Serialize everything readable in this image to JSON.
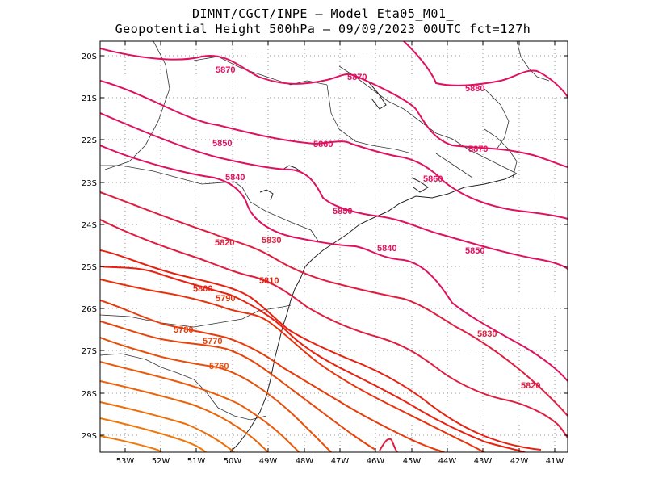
{
  "title": {
    "line1": "DIMNT/CGCT/INPE –  Model Eta05_M01_",
    "line2": "Geopotential Height 500hPa –  09/09/2023 00UTC fct=127h"
  },
  "map": {
    "lon_range": [
      -53.6,
      -40.6
    ],
    "lat_range": [
      -29.4,
      -19.7
    ],
    "lat_ticks": [
      "20S",
      "21S",
      "22S",
      "23S",
      "24S",
      "25S",
      "26S",
      "27S",
      "28S",
      "29S"
    ],
    "lon_ticks": [
      "53W",
      "52W",
      "51W",
      "50W",
      "49W",
      "48W",
      "47W",
      "46W",
      "45W",
      "44W",
      "43W",
      "42W",
      "41W"
    ],
    "grid": "dotted-gray",
    "units": "gpm"
  },
  "colors": {
    "c5870": "#e0115f",
    "c5860": "#e0115f",
    "c5850": "#e0115f",
    "c5840": "#e0115f",
    "c5830": "#e01d3f",
    "c5820": "#e01d3f",
    "c5810": "#e8200f",
    "c5800": "#e8200f",
    "c5790": "#e8300a",
    "c5780": "#e83a0a",
    "c5770": "#e8440a",
    "c5760": "#e84f0a",
    "c5750": "#ea5a0a",
    "c5740": "#ec640a",
    "c5730": "#ee6e0a",
    "c5720": "#f0780a"
  },
  "contour_labels": [
    "5870",
    "5870",
    "5880",
    "5860",
    "5850",
    "5870",
    "5840",
    "5860",
    "5850",
    "5830",
    "5820",
    "5840",
    "5850",
    "5810",
    "5800",
    "5790",
    "5780",
    "5770",
    "5760",
    "5830",
    "5820"
  ]
}
